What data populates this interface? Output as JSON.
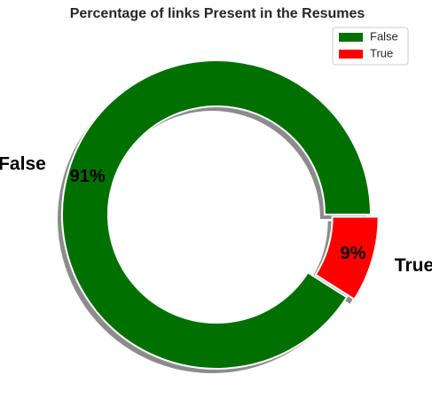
{
  "chart_data": {
    "type": "pie",
    "title": "Percentage of links Present in the Resumes",
    "style": "donut",
    "shadow": true,
    "exploded": [
      "True"
    ],
    "legend_position": "top-right",
    "slices": [
      {
        "label": "False",
        "value": 91,
        "pct_label": "91%",
        "color": "#007000"
      },
      {
        "label": "True",
        "value": 9,
        "pct_label": "9%",
        "color": "#ff0000"
      }
    ],
    "legend": [
      {
        "label": "False",
        "color": "#007000"
      },
      {
        "label": "True",
        "color": "#ff0000"
      }
    ]
  }
}
